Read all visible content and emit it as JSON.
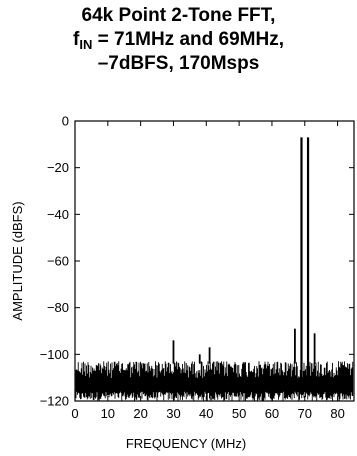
{
  "title": {
    "line1": "64k Point 2-Tone FFT,",
    "line2_prefix": "f",
    "line2_sub": "IN",
    "line2_rest": " = 71MHz and 69MHz,",
    "line3": "–7dBFS, 170Msps"
  },
  "chart_data": {
    "type": "line",
    "xlabel": "FREQUENCY (MHz)",
    "ylabel": "AMPLITUDE (dBFS)",
    "xlim": [
      0,
      85
    ],
    "ylim": [
      -120,
      0
    ],
    "xticks": [
      0,
      10,
      20,
      30,
      40,
      50,
      60,
      70,
      80
    ],
    "yticks": [
      0,
      -20,
      -40,
      -60,
      -80,
      -100,
      -120
    ],
    "grid": false,
    "line_color": "#000000",
    "noise_floor_range": [
      -112,
      -103
    ],
    "spurs": [
      {
        "x": 30,
        "y": -94
      },
      {
        "x": 38,
        "y": -100
      },
      {
        "x": 41,
        "y": -97
      },
      {
        "x": 67,
        "y": -89
      },
      {
        "x": 73,
        "y": -91
      }
    ],
    "tones": [
      {
        "x": 69,
        "y": -7
      },
      {
        "x": 71,
        "y": -7
      }
    ]
  }
}
